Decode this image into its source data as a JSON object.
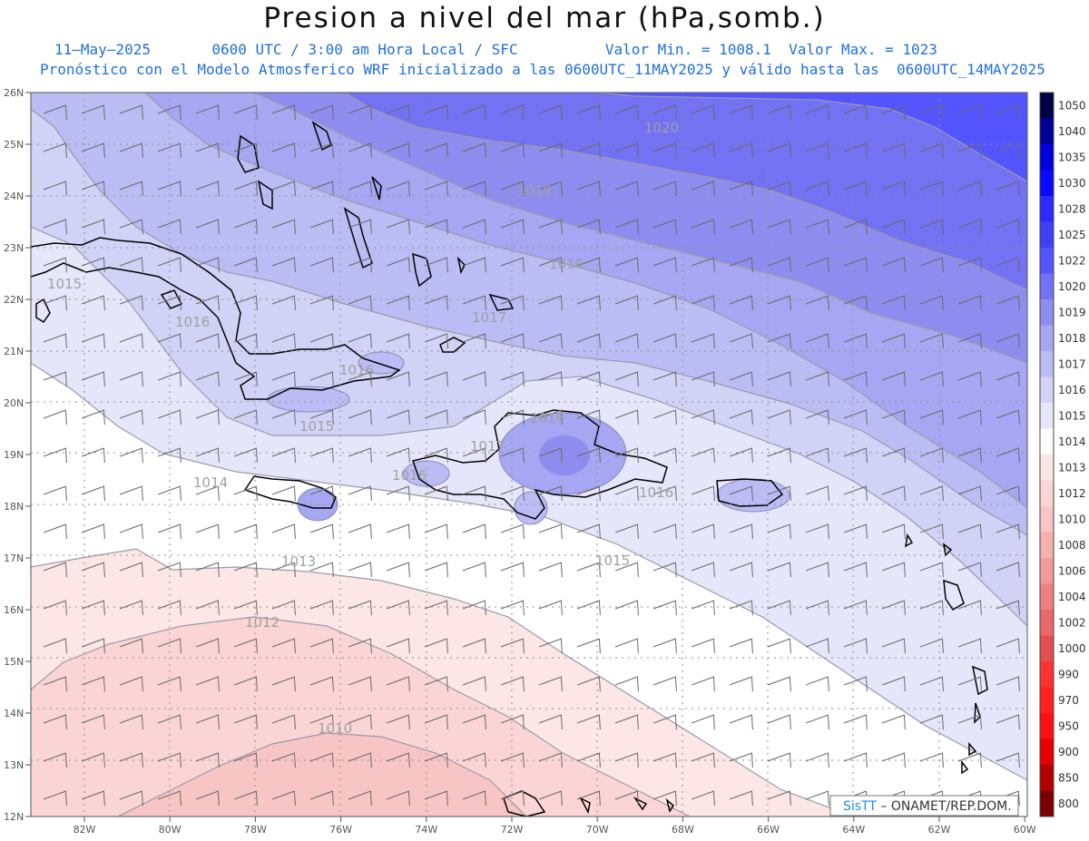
{
  "title": "Presion a nivel del mar (hPa,somb.)",
  "header": {
    "line1": "11–May–2025       0600 UTC / 3:00 am Hora Local / SFC          Valor Min. = 1008.1  Valor Max. = 1023",
    "line2": "Pronóstico con el Modelo Atmosferico WRF inicializado a las 0600UTC_11MAY2025 y válido hasta las  0600UTC_14MAY2025"
  },
  "lat_labels": [
    "26N",
    "25N",
    "24N",
    "23N",
    "22N",
    "21N",
    "20N",
    "19N",
    "18N",
    "17N",
    "16N",
    "15N",
    "14N",
    "13N",
    "12N"
  ],
  "lon_labels": [
    "82W",
    "80W",
    "78W",
    "76W",
    "74W",
    "72W",
    "70W",
    "68W",
    "66W",
    "64W",
    "62W",
    "60W"
  ],
  "contour_labels": [
    "1020",
    "1019",
    "1018",
    "1017",
    "1016",
    "1016",
    "1015",
    "1015",
    "1016",
    "1017",
    "1016",
    "1016",
    "1014",
    "1013",
    "1015",
    "1012",
    "1010"
  ],
  "colorbar": {
    "levels": [
      "1050",
      "1040",
      "1035",
      "1030",
      "1028",
      "1025",
      "1022",
      "1020",
      "1019",
      "1018",
      "1017",
      "1016",
      "1015",
      "1014",
      "1013",
      "1012",
      "1010",
      "1008",
      "1006",
      "1004",
      "1002",
      "1000",
      "990",
      "970",
      "950",
      "900",
      "850",
      "800"
    ],
    "colors": [
      "#00004a",
      "#000099",
      "#0000dd",
      "#0a0aff",
      "#2b2bff",
      "#3f3ff7",
      "#5555ff",
      "#7272f2",
      "#8d8def",
      "#a6a6f2",
      "#bcbcf5",
      "#d2d2f7",
      "#e6e6fa",
      "#ffffff",
      "#fde6e6",
      "#fbd5d5",
      "#f8c5c5",
      "#f5b0b0",
      "#f29a9a",
      "#ee8080",
      "#e96868",
      "#e45050",
      "#ff3232",
      "#ff2020",
      "#ff1010",
      "#e60000",
      "#b40000",
      "#7a0000"
    ]
  },
  "logo": {
    "brand": "SisTT",
    "text": " – ONAMET/REP.DOM."
  }
}
